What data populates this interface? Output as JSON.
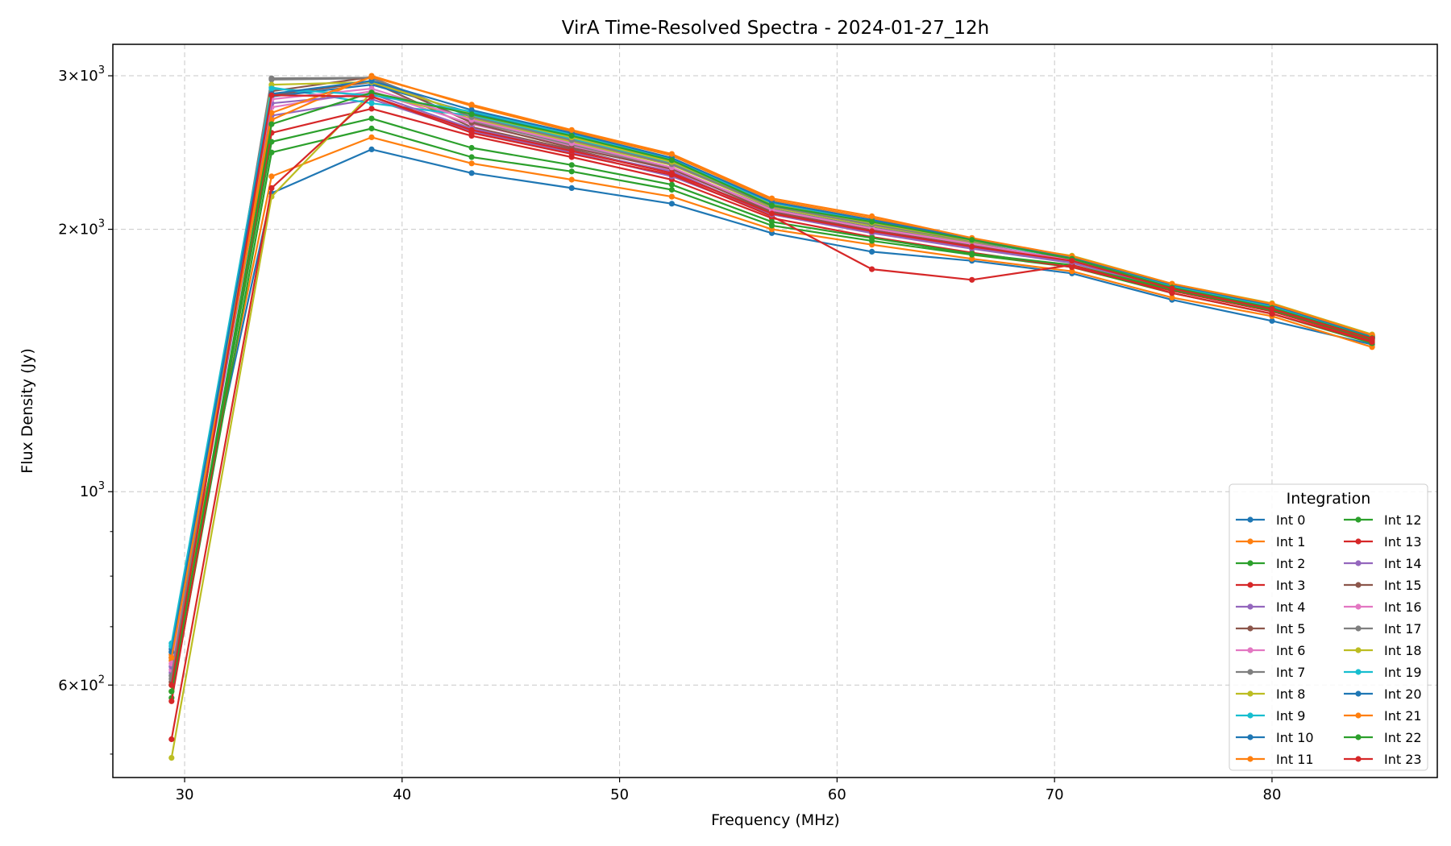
{
  "chart_data": {
    "type": "line",
    "title": "VirA Time-Resolved Spectra - 2024-01-27_12h",
    "xlabel": "Frequency (MHz)",
    "ylabel": "Flux Density (Jy)",
    "yscale": "log",
    "xlim": [
      26.7,
      87.6
    ],
    "ylim": [
      470,
      3260
    ],
    "grid": true,
    "x": [
      29.4,
      34.0,
      38.6,
      43.2,
      47.8,
      52.4,
      57.0,
      61.6,
      66.2,
      70.8,
      75.4,
      80.0,
      84.6
    ],
    "xticks": [
      30,
      40,
      50,
      60,
      70,
      80
    ],
    "yticks_major": [
      {
        "value": 600,
        "mantissa": "6",
        "exp": "2"
      },
      {
        "value": 1000,
        "mantissa": "",
        "exp": "3"
      },
      {
        "value": 2000,
        "mantissa": "2",
        "exp": "3"
      },
      {
        "value": 3000,
        "mantissa": "3",
        "exp": "3"
      }
    ],
    "yticks_minor": [
      500,
      700,
      800,
      900
    ],
    "legend": {
      "title": "Integration",
      "position": "lower right",
      "columns": 2
    },
    "series": [
      {
        "name": "Int 0",
        "color": "#1f77b4",
        "values": [
          655,
          2200,
          2470,
          2320,
          2230,
          2140,
          1980,
          1885,
          1840,
          1780,
          1660,
          1570,
          1475
        ]
      },
      {
        "name": "Int 1",
        "color": "#ff7f0e",
        "values": [
          640,
          2300,
          2550,
          2380,
          2280,
          2180,
          2000,
          1920,
          1850,
          1790,
          1670,
          1590,
          1465
        ]
      },
      {
        "name": "Int 2",
        "color": "#2ca02c",
        "values": [
          580,
          2450,
          2610,
          2420,
          2330,
          2220,
          2020,
          1940,
          1870,
          1810,
          1690,
          1600,
          1480
        ]
      },
      {
        "name": "Int 3",
        "color": "#d62728",
        "values": [
          575,
          2580,
          2750,
          2560,
          2420,
          2280,
          2060,
          1960,
          1880,
          1810,
          1700,
          1610,
          1490
        ]
      },
      {
        "name": "Int 4",
        "color": "#9467bd",
        "values": [
          620,
          2700,
          2820,
          2590,
          2450,
          2300,
          2080,
          1980,
          1900,
          1830,
          1710,
          1620,
          1500
        ]
      },
      {
        "name": "Int 5",
        "color": "#8c564b",
        "values": [
          605,
          2850,
          2950,
          2620,
          2470,
          2320,
          2090,
          1990,
          1910,
          1850,
          1720,
          1630,
          1510
        ]
      },
      {
        "name": "Int 6",
        "color": "#e377c2",
        "values": [
          625,
          2760,
          2880,
          2640,
          2490,
          2340,
          2100,
          2000,
          1920,
          1840,
          1715,
          1625,
          1505
        ]
      },
      {
        "name": "Int 7",
        "color": "#7f7f7f",
        "values": [
          610,
          2970,
          2980,
          2660,
          2500,
          2350,
          2110,
          2010,
          1930,
          1840,
          1720,
          1625,
          1505
        ]
      },
      {
        "name": "Int 8",
        "color": "#bcbd22",
        "values": [
          495,
          2180,
          2870,
          2680,
          2520,
          2370,
          2120,
          2020,
          1935,
          1860,
          1730,
          1640,
          1510
        ]
      },
      {
        "name": "Int 9",
        "color": "#17becf",
        "values": [
          670,
          2910,
          2790,
          2700,
          2540,
          2380,
          2130,
          2030,
          1940,
          1850,
          1720,
          1630,
          1500
        ]
      },
      {
        "name": "Int 10",
        "color": "#1f77b4",
        "values": [
          660,
          2840,
          2930,
          2720,
          2560,
          2400,
          2140,
          2040,
          1945,
          1855,
          1725,
          1635,
          1505
        ]
      },
      {
        "name": "Int 11",
        "color": "#ff7f0e",
        "values": [
          650,
          2670,
          3000,
          2770,
          2590,
          2430,
          2160,
          2060,
          1950,
          1860,
          1730,
          1640,
          1510
        ]
      },
      {
        "name": "Int 12",
        "color": "#2ca02c",
        "values": [
          600,
          2520,
          2680,
          2480,
          2370,
          2250,
          2040,
          1955,
          1875,
          1820,
          1705,
          1615,
          1495
        ]
      },
      {
        "name": "Int 13",
        "color": "#d62728",
        "values": [
          520,
          2230,
          2840,
          2580,
          2440,
          2310,
          2070,
          1800,
          1750,
          1820,
          1690,
          1600,
          1485
        ]
      },
      {
        "name": "Int 14",
        "color": "#9467bd",
        "values": [
          630,
          2790,
          2860,
          2610,
          2460,
          2330,
          2080,
          1985,
          1905,
          1835,
          1712,
          1622,
          1502
        ]
      },
      {
        "name": "Int 15",
        "color": "#8c564b",
        "values": [
          645,
          2880,
          2990,
          2650,
          2480,
          2345,
          2095,
          1995,
          1915,
          1848,
          1722,
          1632,
          1512
        ]
      },
      {
        "name": "Int 16",
        "color": "#e377c2",
        "values": [
          635,
          2820,
          2900,
          2670,
          2510,
          2355,
          2105,
          2005,
          1925,
          1842,
          1718,
          1628,
          1508
        ]
      },
      {
        "name": "Int 17",
        "color": "#7f7f7f",
        "values": [
          615,
          2980,
          2985,
          2690,
          2530,
          2375,
          2125,
          2025,
          1938,
          1858,
          1728,
          1638,
          1508
        ]
      },
      {
        "name": "Int 18",
        "color": "#bcbd22",
        "values": [
          590,
          2930,
          2950,
          2710,
          2550,
          2390,
          2135,
          2035,
          1942,
          1865,
          1732,
          1645,
          1515
        ]
      },
      {
        "name": "Int 19",
        "color": "#17becf",
        "values": [
          665,
          2900,
          2850,
          2730,
          2570,
          2405,
          2145,
          2045,
          1948,
          1852,
          1722,
          1632,
          1502
        ]
      },
      {
        "name": "Int 20",
        "color": "#1f77b4",
        "values": [
          655,
          2860,
          2960,
          2740,
          2580,
          2415,
          2150,
          2050,
          1952,
          1857,
          1727,
          1637,
          1507
        ]
      },
      {
        "name": "Int 21",
        "color": "#ff7f0e",
        "values": [
          645,
          2720,
          2990,
          2780,
          2600,
          2440,
          2170,
          2070,
          1955,
          1862,
          1732,
          1642,
          1512
        ]
      },
      {
        "name": "Int 22",
        "color": "#2ca02c",
        "values": [
          590,
          2640,
          2870,
          2710,
          2560,
          2400,
          2130,
          2040,
          1945,
          1850,
          1715,
          1625,
          1500
        ]
      },
      {
        "name": "Int 23",
        "color": "#d62728",
        "values": [
          600,
          2850,
          2840,
          2600,
          2460,
          2320,
          2085,
          1990,
          1910,
          1840,
          1710,
          1620,
          1498
        ]
      }
    ]
  }
}
